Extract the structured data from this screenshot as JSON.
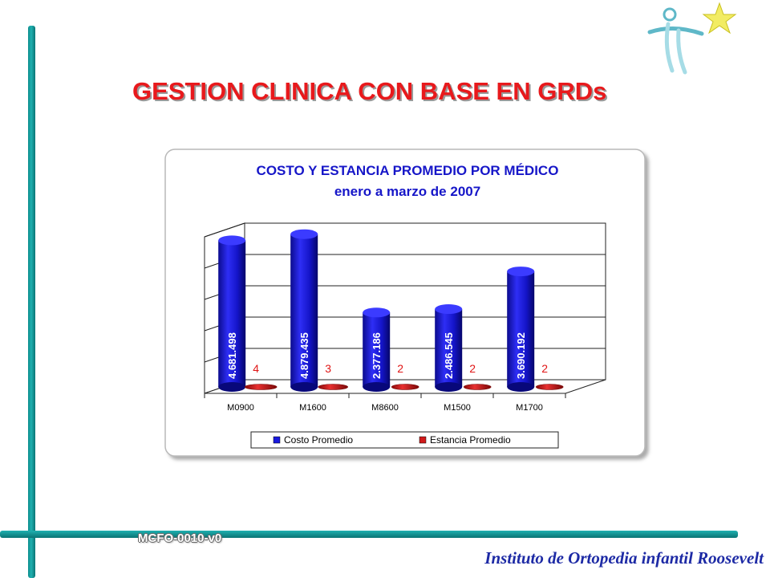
{
  "slide": {
    "title": "GESTION CLINICA  CON BASE EN GRDs",
    "code": "MCFO-0010-v0",
    "footer": "Instituto de Ortopedia infantil Roosevelt"
  },
  "colors": {
    "accent_teal": "#1a9e9e",
    "title_red": "#e8191c",
    "chart_title_blue": "#1616c8",
    "footer_blue": "#1d2aa5",
    "series_blue": "#1a1adf",
    "series_red": "#d11a1a"
  },
  "icons": {
    "logo": "star-figure-logo"
  },
  "chart_data": {
    "type": "bar",
    "title": "COSTO Y ESTANCIA PROMEDIO POR MÉDICO",
    "subtitle": "enero a marzo de 2007",
    "categories": [
      "M0900",
      "M1600",
      "M8600",
      "M1500",
      "M1700"
    ],
    "series": [
      {
        "name": "Costo Promedio",
        "values": [
          4681498,
          4879435,
          2377186,
          2486545,
          3690192
        ],
        "labels": [
          "4.681.498",
          "4.879.435",
          "2.377.186",
          "2.486.545",
          "3.690.192"
        ]
      },
      {
        "name": "Estancia Promedio",
        "values": [
          4,
          3,
          2,
          2,
          2
        ],
        "labels": [
          "4",
          "3",
          "2",
          "2",
          "2"
        ]
      }
    ],
    "ylim": [
      0,
      5000000
    ],
    "grid": true,
    "legend_position": "bottom",
    "style": "3d-cylinder"
  }
}
